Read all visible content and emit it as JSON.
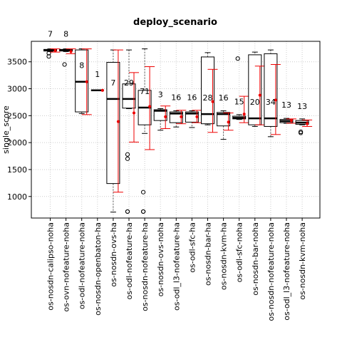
{
  "chart_data": {
    "type": "box",
    "title": "deploy_scenario",
    "xlabel": "",
    "ylabel": "single_score",
    "ylim": [
      600,
      3880
    ],
    "yticks": [
      1000,
      1500,
      2000,
      2500,
      3000,
      3500
    ],
    "ytick_labels": [
      "1000",
      "1500",
      "2000",
      "2500",
      "3000",
      "3500"
    ],
    "grid": true,
    "colors": {
      "box": "#000000",
      "mean": "#ee0000",
      "ci": "#ee0000",
      "grid": "#cccccc"
    },
    "categories": [
      "os-nosdn-calipso-noha",
      "os-ovn-nofeature-noha",
      "os-odl-nofeature-noha",
      "os-nosdn-openbaton-ha",
      "os-nosdn-ovs-ha",
      "os-odl-nofeature-ha",
      "os-nosdn-nofeature-ha",
      "os-nosdn-ovs-noha",
      "os-odl_l3-nofeature-ha",
      "os-odl-sfc-ha",
      "os-nosdn-bar-ha",
      "os-nosdn-kvm-ha",
      "os-odl-sfc-noha",
      "os-nosdn-bar-noha",
      "os-nosdn-nofeature-noha",
      "os-odl_l3-nofeature-noha",
      "os-nosdn-kvm-noha"
    ],
    "counts": [
      "7",
      "8",
      "8",
      "1",
      "7",
      "29",
      "71",
      "3",
      "16",
      "16",
      "28",
      "16",
      "15",
      "20",
      "34",
      "13",
      "13"
    ],
    "boxes": [
      {
        "whisker_low": 3690,
        "q1": 3700,
        "median": 3715,
        "q3": 3730,
        "whisker_high": 3740,
        "outliers": [
          3660,
          3600
        ],
        "mean": 3710,
        "ci_low": 3680,
        "ci_high": 3740
      },
      {
        "whisker_low": 3690,
        "q1": 3700,
        "median": 3715,
        "q3": 3730,
        "whisker_high": 3740,
        "outliers": [
          3450
        ],
        "mean": 3690,
        "ci_low": 3650,
        "ci_high": 3740
      },
      {
        "whisker_low": 2540,
        "q1": 2570,
        "median": 3130,
        "q3": 3720,
        "whisker_high": 3740,
        "outliers": [],
        "mean": 3130,
        "ci_low": 2520,
        "ci_high": 3740
      },
      {
        "whisker_low": 2970,
        "q1": 2970,
        "median": 2970,
        "q3": 2970,
        "whisker_high": 2970,
        "outliers": [],
        "mean": 2970,
        "ci_low": 2970,
        "ci_high": 2970
      },
      {
        "whisker_low": 710,
        "q1": 1240,
        "median": 2810,
        "q3": 3490,
        "whisker_high": 3720,
        "outliers": [],
        "mean": 2390,
        "ci_low": 1080,
        "ci_high": 3720
      },
      {
        "whisker_low": 2630,
        "q1": 2640,
        "median": 2810,
        "q3": 3090,
        "whisker_high": 3720,
        "outliers": [
          1780,
          1700,
          720,
          720
        ],
        "mean": 2550,
        "ci_low": 2010,
        "ci_high": 3300
      },
      {
        "whisker_low": 2170,
        "q1": 2330,
        "median": 2650,
        "q3": 2970,
        "whisker_high": 3740,
        "outliers": [
          1080,
          720,
          720
        ],
        "mean": 2670,
        "ci_low": 1870,
        "ci_high": 3410
      },
      {
        "whisker_low": 2230,
        "q1": 2410,
        "median": 2590,
        "q3": 2610,
        "whisker_high": 2630,
        "outliers": [],
        "mean": 2480,
        "ci_low": 2260,
        "ci_high": 2680
      },
      {
        "whisker_low": 2290,
        "q1": 2370,
        "median": 2540,
        "q3": 2570,
        "whisker_high": 2590,
        "outliers": [],
        "mean": 2480,
        "ci_low": 2350,
        "ci_high": 2600
      },
      {
        "whisker_low": 2280,
        "q1": 2380,
        "median": 2540,
        "q3": 2570,
        "whisker_high": 2590,
        "outliers": [],
        "mean": 2480,
        "ci_low": 2370,
        "ci_high": 2600
      },
      {
        "whisker_low": 2330,
        "q1": 2350,
        "median": 2530,
        "q3": 3590,
        "whisker_high": 3670,
        "outliers": [],
        "mean": 2760,
        "ci_low": 2190,
        "ci_high": 3360
      },
      {
        "whisker_low": 2060,
        "q1": 2310,
        "median": 2530,
        "q3": 2560,
        "whisker_high": 2590,
        "outliers": [],
        "mean": 2380,
        "ci_low": 2230,
        "ci_high": 2550
      },
      {
        "whisker_low": 2430,
        "q1": 2440,
        "median": 2460,
        "q3": 2490,
        "whisker_high": 2520,
        "outliers": [
          3560
        ],
        "mean": 2530,
        "ci_low": 2370,
        "ci_high": 2860
      },
      {
        "whisker_low": 2300,
        "q1": 2330,
        "median": 2450,
        "q3": 3630,
        "whisker_high": 3680,
        "outliers": [],
        "mean": 2880,
        "ci_low": 2330,
        "ci_high": 3420
      },
      {
        "whisker_low": 2110,
        "q1": 2300,
        "median": 2450,
        "q3": 3650,
        "whisker_high": 3720,
        "outliers": [],
        "mean": 2790,
        "ci_low": 2150,
        "ci_high": 3450
      },
      {
        "whisker_low": 2360,
        "q1": 2370,
        "median": 2400,
        "q3": 2430,
        "whisker_high": 2450,
        "outliers": [],
        "mean": 2410,
        "ci_low": 2360,
        "ci_high": 2440
      },
      {
        "whisker_low": 2330,
        "q1": 2340,
        "median": 2370,
        "q3": 2410,
        "whisker_high": 2440,
        "outliers": [
          2200,
          2180
        ],
        "mean": 2350,
        "ci_low": 2300,
        "ci_high": 2420
      }
    ]
  }
}
